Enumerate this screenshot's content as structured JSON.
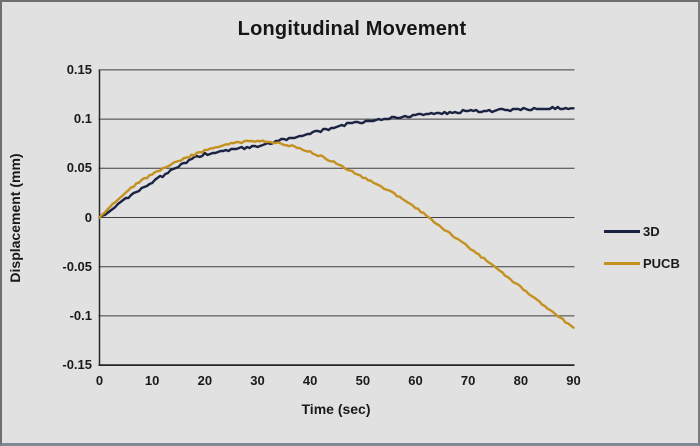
{
  "window": {
    "background_color": "#e1e1e1",
    "border_color": "#6f6f6f",
    "border_bottom_color": "#7e8995"
  },
  "colors": {
    "text": "#1a1a1a",
    "grid": "#3f3f3f",
    "axis": "#262626",
    "series_3d": "#1b2342",
    "series_pucb": "#c3911f"
  },
  "chart_data": {
    "type": "line",
    "title": "Longitudinal Movement",
    "xlabel": "Time (sec)",
    "ylabel": "Displacement (mm)",
    "xlim": [
      0,
      90
    ],
    "ylim": [
      -0.15,
      0.15
    ],
    "grid": "horizontal",
    "legend_position": "right",
    "x_ticks": [
      0,
      10,
      20,
      30,
      40,
      50,
      60,
      70,
      80,
      90
    ],
    "y_ticks": [
      {
        "value": 0.15,
        "label": "0.15"
      },
      {
        "value": 0.1,
        "label": "0.1"
      },
      {
        "value": 0.05,
        "label": "0.05"
      },
      {
        "value": 0,
        "label": "0"
      },
      {
        "value": -0.05,
        "label": "-0.05"
      },
      {
        "value": -0.1,
        "label": "-0.1"
      },
      {
        "value": -0.15,
        "label": "-0.15"
      }
    ],
    "x": [
      0,
      2.5,
      5,
      7.5,
      10,
      12.5,
      15,
      17.5,
      20,
      22.5,
      25,
      27.5,
      30,
      32.5,
      35,
      37.5,
      40,
      42.5,
      45,
      47.5,
      50,
      52.5,
      55,
      57.5,
      60,
      62.5,
      65,
      67.5,
      70,
      72.5,
      75,
      77.5,
      80,
      82.5,
      85,
      87.5,
      90
    ],
    "series": [
      {
        "name": "3D",
        "color": "#1b2342",
        "values": [
          0,
          0.009,
          0.019,
          0.028,
          0.036,
          0.044,
          0.052,
          0.059,
          0.064,
          0.067,
          0.069,
          0.071,
          0.073,
          0.076,
          0.079,
          0.082,
          0.086,
          0.089,
          0.092,
          0.095,
          0.097,
          0.099,
          0.101,
          0.102,
          0.104,
          0.105,
          0.106,
          0.107,
          0.108,
          0.108,
          0.109,
          0.109,
          0.11,
          0.11,
          0.111,
          0.111,
          0.111
        ]
      },
      {
        "name": "PUCB",
        "color": "#c3911f",
        "values": [
          0,
          0.014,
          0.026,
          0.036,
          0.044,
          0.051,
          0.057,
          0.063,
          0.068,
          0.072,
          0.075,
          0.077,
          0.078,
          0.077,
          0.0745,
          0.071,
          0.067,
          0.061,
          0.055,
          0.048,
          0.041,
          0.034,
          0.027,
          0.019,
          0.01,
          0,
          -0.01,
          -0.02,
          -0.03,
          -0.04,
          -0.05,
          -0.061,
          -0.071,
          -0.082,
          -0.092,
          -0.102,
          -0.112
        ]
      }
    ]
  }
}
